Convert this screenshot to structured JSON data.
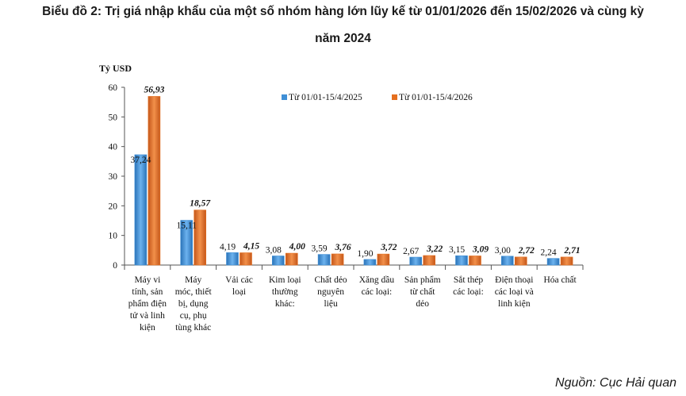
{
  "title_line1": "Biểu đồ 2: Trị giá nhập khẩu của một số nhóm hàng lớn lũy kế từ 01/01/2026 đến 15/02/2026 và cùng kỳ",
  "title_line2": "năm 2024",
  "source": "Nguồn: Cục Hải quan",
  "colors": {
    "series_2025": "#3f8fd6",
    "series_2026": "#e56f1e"
  },
  "chart_data": {
    "type": "bar",
    "ylabel": "Tỷ USD",
    "ylim": [
      0,
      60
    ],
    "yticks": [
      "0",
      "10",
      "20",
      "30",
      "40",
      "50",
      "60"
    ],
    "categories": [
      [
        "Máy vi",
        "tính, sản",
        "phẩm điện",
        "tử và linh",
        "kiện"
      ],
      [
        "Máy",
        "móc, thiết",
        "bị, dụng",
        "cụ, phụ",
        "tùng khác"
      ],
      [
        "Vải các",
        "loại"
      ],
      [
        "Kim loại",
        "thường",
        "khác:"
      ],
      [
        "Chất dẻo",
        "nguyên",
        "liệu"
      ],
      [
        "Xăng dầu",
        "các loại:"
      ],
      [
        "Sản phẩm",
        "từ chất",
        "dẻo"
      ],
      [
        "Sắt thép",
        "các loại:"
      ],
      [
        "Điện thoại",
        "các loại và",
        "linh kiện"
      ],
      [
        "Hóa chất"
      ]
    ],
    "series": [
      {
        "name": "Từ 01/01-15/4/2025",
        "values": [
          37.24,
          15.11,
          4.19,
          3.08,
          3.59,
          1.9,
          2.67,
          3.15,
          3.0,
          2.24
        ],
        "labels": [
          "37,24",
          "15,11",
          "4,19",
          "3,08",
          "3,59",
          "1,90",
          "2,67",
          "3,15",
          "3,00",
          "2,24"
        ]
      },
      {
        "name": "Từ 01/01-15/4/2026",
        "values": [
          56.93,
          18.57,
          4.15,
          4.0,
          3.76,
          3.72,
          3.22,
          3.09,
          2.72,
          2.71
        ],
        "labels": [
          "56,93",
          "18,57",
          "4,15",
          "4,00",
          "3,76",
          "3,72",
          "3,22",
          "3,09",
          "2,72",
          "2,71"
        ]
      }
    ],
    "legend_position": "top-right",
    "grid": false
  }
}
